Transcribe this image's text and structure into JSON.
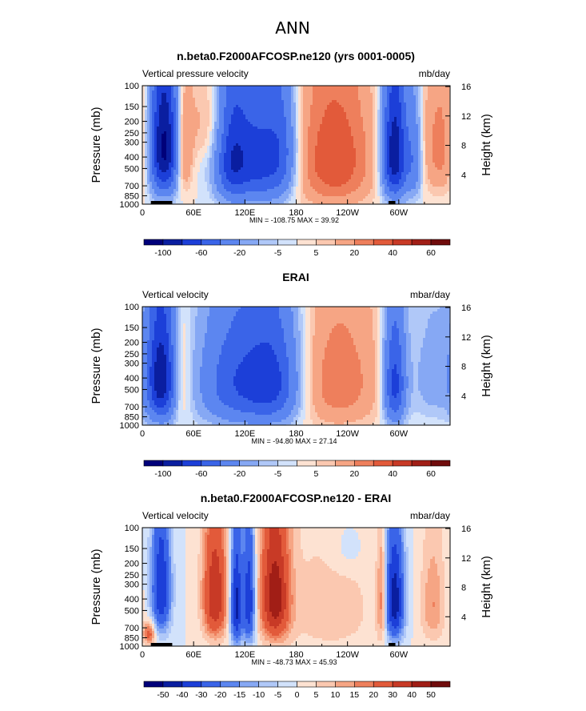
{
  "figure": {
    "suptitle": "ANN"
  },
  "colors": {
    "cool": [
      "#00007a",
      "#0a1ea0",
      "#1c3fd8",
      "#3a64e8",
      "#5c86f0",
      "#86a8f4",
      "#b0c8f8",
      "#d2e2fb"
    ],
    "warm": [
      "#fde2d2",
      "#fbc8b0",
      "#f6a584",
      "#ee7f5c",
      "#e25a3a",
      "#c83a26",
      "#a11e16",
      "#700c0c"
    ]
  },
  "chart_data": [
    {
      "type": "heatmap",
      "name": "model",
      "title": "n.beta0.F2000AFCOSP.ne120 (yrs 0001-0005)",
      "left_label": "Vertical pressure velocity",
      "right_label": "mb/day",
      "ylabel": "Pressure (mb)",
      "y2label": "Height (km)",
      "xticks": [
        "0",
        "60E",
        "120E",
        "180",
        "120W",
        "60W"
      ],
      "xtick_values": [
        0,
        60,
        120,
        180,
        240,
        300
      ],
      "xlim": [
        0,
        360
      ],
      "yticks": [
        "100",
        "150",
        "200",
        "250",
        "300",
        "400",
        "500",
        "700",
        "850",
        "1000"
      ],
      "ytick_values": [
        100,
        150,
        200,
        250,
        300,
        400,
        500,
        700,
        850,
        1000
      ],
      "ylim": [
        100,
        1000
      ],
      "y2ticks": [
        "16",
        "12",
        "8",
        "4"
      ],
      "y2tick_values": [
        16,
        12,
        8,
        4
      ],
      "min_max": "MIN = -108.75   MAX =  39.92",
      "levels": [
        -100,
        -80,
        -60,
        -40,
        -20,
        -10,
        -5,
        0,
        5,
        10,
        20,
        30,
        40,
        50,
        60
      ],
      "colorbar_labels": [
        "-100",
        "-60",
        "-20",
        "-5",
        "5",
        "20",
        "40",
        "60"
      ],
      "colorbar_label_levels": [
        -100,
        -60,
        -20,
        -5,
        5,
        20,
        40,
        60
      ],
      "features": [
        {
          "lon": 25,
          "p": 330,
          "amp": -108.75,
          "wlon": 12,
          "wp": 300
        },
        {
          "lon": 48,
          "p": 380,
          "amp": 30,
          "wlon": 7,
          "wp": 260
        },
        {
          "lon": 105,
          "p": 400,
          "amp": -70,
          "wlon": 14,
          "wp": 330
        },
        {
          "lon": 140,
          "p": 420,
          "amp": -65,
          "wlon": 20,
          "wp": 340
        },
        {
          "lon": 165,
          "p": 350,
          "amp": -30,
          "wlon": 12,
          "wp": 300
        },
        {
          "lon": 225,
          "p": 420,
          "amp": 39.92,
          "wlon": 32,
          "wp": 380
        },
        {
          "lon": 295,
          "p": 380,
          "amp": -100,
          "wlon": 10,
          "wp": 320
        },
        {
          "lon": 318,
          "p": 420,
          "amp": -35,
          "wlon": 7,
          "wp": 280
        },
        {
          "lon": 350,
          "p": 330,
          "amp": 25,
          "wlon": 18,
          "wp": 300
        },
        {
          "lon": 80,
          "p": 200,
          "amp": 14,
          "wlon": 20,
          "wp": 140
        }
      ],
      "land_marks": [
        [
          10,
          35
        ],
        [
          288,
          296
        ]
      ]
    },
    {
      "type": "heatmap",
      "name": "reference",
      "title": "ERAI",
      "left_label": "Vertical velocity",
      "right_label": "mbar/day",
      "ylabel": "Pressure (mb)",
      "y2label": "Height (km)",
      "xticks": [
        "0",
        "60E",
        "120E",
        "180",
        "120W",
        "60W"
      ],
      "xtick_values": [
        0,
        60,
        120,
        180,
        240,
        300
      ],
      "xlim": [
        0,
        360
      ],
      "yticks": [
        "100",
        "150",
        "200",
        "250",
        "300",
        "400",
        "500",
        "700",
        "850",
        "1000"
      ],
      "ytick_values": [
        100,
        150,
        200,
        250,
        300,
        400,
        500,
        700,
        850,
        1000
      ],
      "ylim": [
        100,
        1000
      ],
      "y2ticks": [
        "16",
        "12",
        "8",
        "4"
      ],
      "y2tick_values": [
        16,
        12,
        8,
        4
      ],
      "min_max": "MIN = -94.80   MAX =  27.14",
      "levels": [
        -100,
        -80,
        -60,
        -40,
        -20,
        -10,
        -5,
        0,
        5,
        10,
        20,
        30,
        40,
        50,
        60
      ],
      "colorbar_labels": [
        "-100",
        "-60",
        "-20",
        "-5",
        "5",
        "20",
        "40",
        "60"
      ],
      "colorbar_label_levels": [
        -100,
        -60,
        -20,
        -5,
        5,
        20,
        40,
        60
      ],
      "features": [
        {
          "lon": 22,
          "p": 400,
          "amp": -94.8,
          "wlon": 12,
          "wp": 320
        },
        {
          "lon": 45,
          "p": 420,
          "amp": 18,
          "wlon": 8,
          "wp": 300
        },
        {
          "lon": 110,
          "p": 430,
          "amp": -55,
          "wlon": 30,
          "wp": 340
        },
        {
          "lon": 155,
          "p": 430,
          "amp": -55,
          "wlon": 22,
          "wp": 330
        },
        {
          "lon": 230,
          "p": 430,
          "amp": 27.14,
          "wlon": 35,
          "wp": 380
        },
        {
          "lon": 295,
          "p": 450,
          "amp": -70,
          "wlon": 9,
          "wp": 320
        },
        {
          "lon": 340,
          "p": 400,
          "amp": -15,
          "wlon": 20,
          "wp": 320
        }
      ],
      "land_marks": []
    },
    {
      "type": "heatmap",
      "name": "difference",
      "title": "n.beta0.F2000AFCOSP.ne120 - ERAI",
      "left_label": "Vertical velocity",
      "right_label": "mbar/day",
      "ylabel": "Pressure (mb)",
      "y2label": "Height (km)",
      "xticks": [
        "0",
        "60E",
        "120E",
        "180",
        "120W",
        "60W"
      ],
      "xtick_values": [
        0,
        60,
        120,
        180,
        240,
        300
      ],
      "xlim": [
        0,
        360
      ],
      "yticks": [
        "100",
        "150",
        "200",
        "250",
        "300",
        "400",
        "500",
        "700",
        "850",
        "1000"
      ],
      "ytick_values": [
        100,
        150,
        200,
        250,
        300,
        400,
        500,
        700,
        850,
        1000
      ],
      "ylim": [
        100,
        1000
      ],
      "y2ticks": [
        "16",
        "12",
        "8",
        "4"
      ],
      "y2tick_values": [
        16,
        12,
        8,
        4
      ],
      "min_max": "MIN = -48.73   MAX =  45.93",
      "levels": [
        -50,
        -40,
        -30,
        -20,
        -15,
        -10,
        -5,
        0,
        5,
        10,
        15,
        20,
        30,
        40,
        50
      ],
      "colorbar_labels": [
        "-50",
        "-40",
        "-30",
        "-20",
        "-15",
        "-10",
        "-5",
        "0",
        "5",
        "10",
        "15",
        "20",
        "30",
        "40",
        "50"
      ],
      "colorbar_label_levels": [
        -50,
        -40,
        -30,
        -20,
        -15,
        -10,
        -5,
        0,
        5,
        10,
        15,
        20,
        30,
        40,
        50
      ],
      "features": [
        {
          "lon": 22,
          "p": 330,
          "amp": -40,
          "wlon": 8,
          "wp": 280
        },
        {
          "lon": 8,
          "p": 780,
          "amp": 25,
          "wlon": 5,
          "wp": 120
        },
        {
          "lon": 85,
          "p": 380,
          "amp": 40,
          "wlon": 10,
          "wp": 300
        },
        {
          "lon": 110,
          "p": 450,
          "amp": -45,
          "wlon": 5,
          "wp": 330
        },
        {
          "lon": 125,
          "p": 420,
          "amp": -40,
          "wlon": 5,
          "wp": 330
        },
        {
          "lon": 155,
          "p": 380,
          "amp": 45.93,
          "wlon": 12,
          "wp": 320
        },
        {
          "lon": 220,
          "p": 500,
          "amp": 8,
          "wlon": 40,
          "wp": 400
        },
        {
          "lon": 295,
          "p": 420,
          "amp": -48.73,
          "wlon": 8,
          "wp": 300
        },
        {
          "lon": 280,
          "p": 420,
          "amp": 20,
          "wlon": 4,
          "wp": 300
        },
        {
          "lon": 340,
          "p": 450,
          "amp": 15,
          "wlon": 10,
          "wp": 300
        },
        {
          "lon": 240,
          "p": 150,
          "amp": -6,
          "wlon": 15,
          "wp": 60
        }
      ],
      "land_marks": [
        [
          10,
          35
        ],
        [
          288,
          296
        ]
      ]
    }
  ]
}
